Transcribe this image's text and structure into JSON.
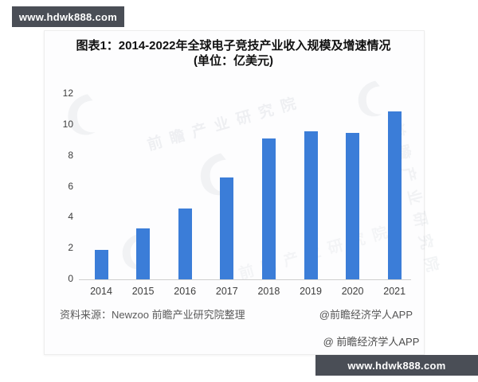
{
  "banners": {
    "top_left": {
      "text": "www.hdwk888.com",
      "bg": "#4a4e56"
    },
    "bottom_right": {
      "text": "www.hdwk888.com",
      "bg": "#4a4e56"
    }
  },
  "chart": {
    "title": "图表1：2014-2022年全球电子竞技产业收入规模及增速情况",
    "subtitle": "(单位：亿美元)"
  },
  "chart_data": {
    "type": "bar",
    "categories": [
      "2014",
      "2015",
      "2016",
      "2017",
      "2018",
      "2019",
      "2020",
      "2021"
    ],
    "values": [
      1.9,
      3.3,
      4.6,
      6.6,
      9.1,
      9.6,
      9.5,
      10.9
    ],
    "title": "图表1：2014-2022年全球电子竞技产业收入规模及增速情况",
    "subtitle": "(单位：亿美元)",
    "unit": "亿美元",
    "xlabel": "",
    "ylabel": "",
    "ylim": [
      0,
      12
    ],
    "yticks": [
      0,
      2,
      4,
      6,
      8,
      10,
      12
    ],
    "bar_color": "#3b7dd8",
    "grid": false,
    "legend": false
  },
  "source": {
    "left": "资料来源：Newzoo 前瞻产业研究院整理",
    "right": "@前瞻经济学人APP"
  },
  "footer": {
    "credit": "@ 前瞻经济学人APP"
  },
  "watermark": {
    "text": "前瞻产业研究院",
    "color": "#8d97a8"
  }
}
